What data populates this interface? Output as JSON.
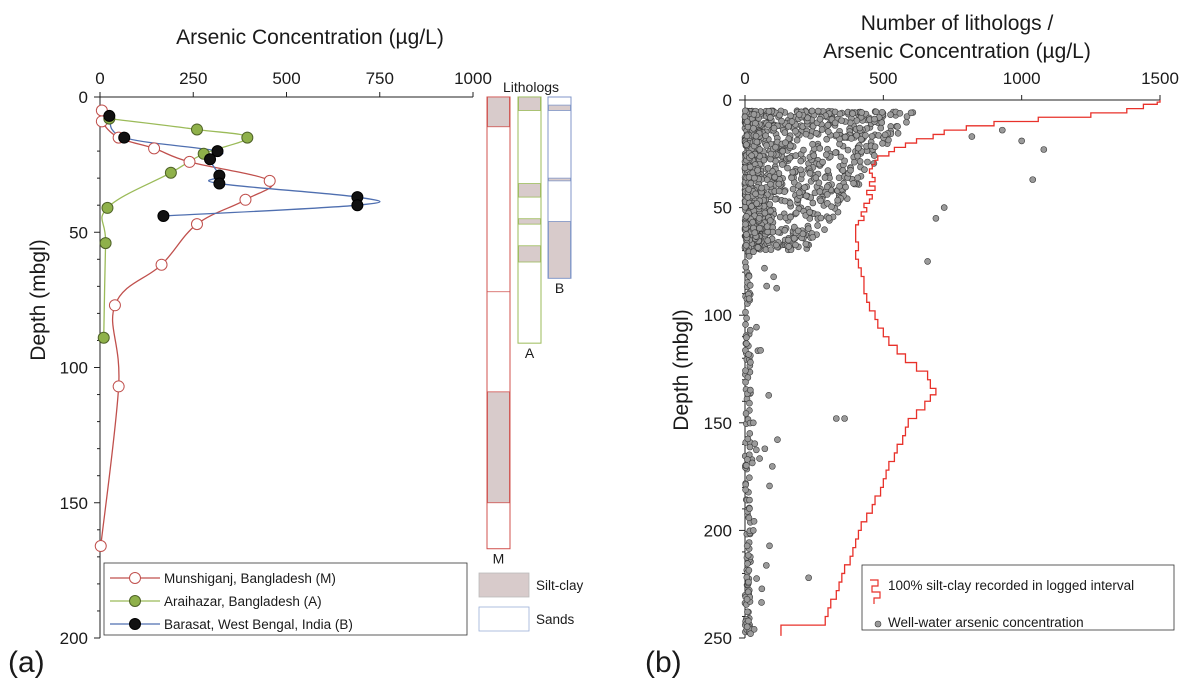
{
  "chart_data": [
    {
      "panel": "(a)",
      "type": "line",
      "title": "Arsenic Concentration (µg/L)",
      "xlabel": "Arsenic Concentration (µg/L)",
      "ylabel": "Depth (mbgl)",
      "xlim": [
        0,
        1000
      ],
      "ylim": [
        200,
        0
      ],
      "xticks": [
        0,
        250,
        500,
        750,
        1000
      ],
      "yticks": [
        0,
        50,
        100,
        150,
        200
      ],
      "grid": false,
      "legend_position": "bottom",
      "series": [
        {
          "name": "Munshiganj, Bangladesh (M)",
          "line_color": "#c0504d",
          "marker_fill": "#ffffff",
          "marker_edge": "#c0504d",
          "points": [
            [
              5,
              5
            ],
            [
              5,
              9
            ],
            [
              50,
              15
            ],
            [
              145,
              19
            ],
            [
              240,
              24
            ],
            [
              455,
              31
            ],
            [
              390,
              38
            ],
            [
              260,
              47
            ],
            [
              165,
              62
            ],
            [
              40,
              77
            ],
            [
              50,
              107
            ],
            [
              2,
              166
            ]
          ]
        },
        {
          "name": "Araihazar, Bangladesh (A)",
          "line_color": "#9bbb59",
          "marker_fill": "#8fb14a",
          "marker_edge": "#4f6228",
          "points": [
            [
              25,
              8
            ],
            [
              260,
              12
            ],
            [
              395,
              15
            ],
            [
              278,
              21
            ],
            [
              190,
              28
            ],
            [
              20,
              41
            ],
            [
              15,
              54
            ],
            [
              10,
              89
            ]
          ]
        },
        {
          "name": "Barasat, West Bengal, India (B)",
          "line_color": "#4f6fb0",
          "marker_fill": "#111111",
          "marker_edge": "#000000",
          "points": [
            [
              25,
              7
            ],
            [
              65,
              15
            ],
            [
              315,
              20
            ],
            [
              295,
              23
            ],
            [
              320,
              29
            ],
            [
              320,
              32
            ],
            [
              690,
              37
            ],
            [
              690,
              40
            ],
            [
              170,
              44
            ]
          ]
        }
      ],
      "lithologs": {
        "title": "Lithologs",
        "legend": [
          {
            "label": "Silt-clay",
            "fill": "#d8cbcb"
          },
          {
            "label": "Sands",
            "fill": "#ffffff"
          }
        ],
        "columns": [
          {
            "label": "M",
            "border": "#d0504d",
            "bottom": 167,
            "clay": [
              [
                0,
                11
              ],
              [
                109,
                150
              ]
            ],
            "ticks": [
              72
            ]
          },
          {
            "label": "A",
            "border": "#9bbb59",
            "bottom": 91,
            "clay": [
              [
                0,
                5
              ],
              [
                32,
                37
              ],
              [
                45,
                47
              ],
              [
                55,
                61
              ]
            ],
            "ticks": []
          },
          {
            "label": "B",
            "border": "#8096c8",
            "bottom": 67,
            "clay": [
              [
                3,
                5
              ],
              [
                30,
                31
              ],
              [
                46,
                67
              ]
            ],
            "ticks": []
          }
        ]
      }
    },
    {
      "panel": "(b)",
      "type": "scatter",
      "title": "Number of lithologs / Arsenic Concentration (µg/L)",
      "title_lines": [
        "Number of lithologs /",
        "Arsenic Concentration (µg/L)"
      ],
      "xlabel": "Number of lithologs / Arsenic Concentration (µg/L)",
      "ylabel": "Depth (mbgl)",
      "xlim": [
        0,
        1500
      ],
      "ylim": [
        250,
        0
      ],
      "xticks": [
        0,
        500,
        1000,
        1500
      ],
      "yticks": [
        0,
        50,
        100,
        150,
        200,
        250
      ],
      "grid": false,
      "legend_position": "bottom-right",
      "series": [
        {
          "name": "100% silt-clay recorded in logged interval",
          "type": "step",
          "color": "#e8312a",
          "points": [
            [
              1500,
              1
            ],
            [
              1490,
              2
            ],
            [
              1440,
              4
            ],
            [
              1380,
              6
            ],
            [
              1250,
              8
            ],
            [
              1060,
              10
            ],
            [
              900,
              12
            ],
            [
              800,
              14
            ],
            [
              720,
              16
            ],
            [
              680,
              18
            ],
            [
              620,
              20
            ],
            [
              580,
              22
            ],
            [
              540,
              24
            ],
            [
              520,
              26
            ],
            [
              480,
              28
            ],
            [
              470,
              30
            ],
            [
              460,
              32
            ],
            [
              450,
              34
            ],
            [
              460,
              36
            ],
            [
              470,
              38
            ],
            [
              450,
              40
            ],
            [
              470,
              42
            ],
            [
              440,
              44
            ],
            [
              460,
              46
            ],
            [
              450,
              48
            ],
            [
              430,
              50
            ],
            [
              440,
              52
            ],
            [
              420,
              54
            ],
            [
              430,
              56
            ],
            [
              410,
              58
            ],
            [
              400,
              62
            ],
            [
              400,
              66
            ],
            [
              410,
              70
            ],
            [
              400,
              74
            ],
            [
              410,
              78
            ],
            [
              420,
              82
            ],
            [
              430,
              86
            ],
            [
              430,
              90
            ],
            [
              440,
              94
            ],
            [
              450,
              98
            ],
            [
              470,
              102
            ],
            [
              480,
              106
            ],
            [
              500,
              110
            ],
            [
              520,
              114
            ],
            [
              550,
              118
            ],
            [
              580,
              122
            ],
            [
              620,
              126
            ],
            [
              660,
              130
            ],
            [
              670,
              134
            ],
            [
              690,
              137
            ],
            [
              670,
              140
            ],
            [
              650,
              144
            ],
            [
              620,
              148
            ],
            [
              590,
              152
            ],
            [
              580,
              156
            ],
            [
              570,
              160
            ],
            [
              550,
              164
            ],
            [
              540,
              168
            ],
            [
              520,
              172
            ],
            [
              510,
              176
            ],
            [
              500,
              180
            ],
            [
              490,
              184
            ],
            [
              470,
              188
            ],
            [
              460,
              192
            ],
            [
              440,
              196
            ],
            [
              420,
              200
            ],
            [
              410,
              204
            ],
            [
              400,
              208
            ],
            [
              390,
              212
            ],
            [
              380,
              216
            ],
            [
              360,
              220
            ],
            [
              350,
              224
            ],
            [
              340,
              228
            ],
            [
              330,
              232
            ],
            [
              310,
              236
            ],
            [
              300,
              240
            ],
            [
              290,
              244
            ],
            [
              130,
              247
            ],
            [
              130,
              249
            ]
          ]
        },
        {
          "name": "Well-water arsenic concentration",
          "type": "scatter",
          "marker_fill": "#9a9a9a",
          "marker_edge": "#3a3a3a",
          "points_note": "dense cloud between 0–700 µg/L for depths 5–75 m, sparse tail to 250 m",
          "notable_points": [
            [
              820,
              17
            ],
            [
              930,
              14
            ],
            [
              1000,
              19
            ],
            [
              1080,
              23
            ],
            [
              1040,
              37
            ],
            [
              720,
              50
            ],
            [
              690,
              55
            ],
            [
              660,
              75
            ],
            [
              330,
              148
            ],
            [
              360,
              148
            ],
            [
              30,
              150
            ],
            [
              30,
              200
            ],
            [
              230,
              222
            ],
            [
              20,
              248
            ]
          ]
        }
      ]
    }
  ]
}
